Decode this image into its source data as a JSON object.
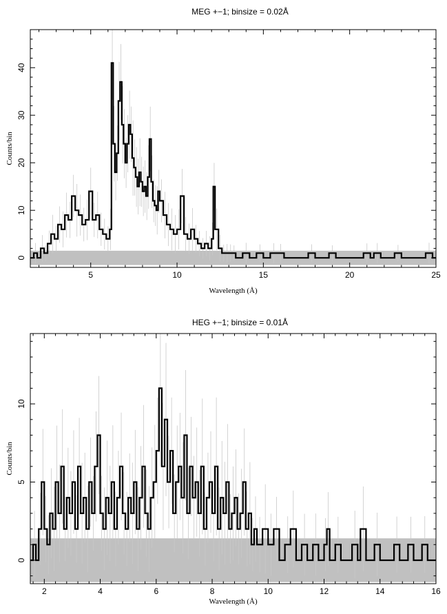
{
  "figure": {
    "background": "#ffffff",
    "data_color": "#000000",
    "error_color": "#c8c8c8",
    "noise_band_color": "#c0c0c0"
  },
  "chart_data": [
    {
      "type": "line",
      "style": "histogram-step",
      "title": "MEG +−1; binsize = 0.02Å",
      "xlabel": "Wavelength (Å)",
      "ylabel": "Counts/bin",
      "xlim": [
        1.5,
        25
      ],
      "ylim": [
        -2,
        48
      ],
      "x_ticks": [
        5,
        10,
        15,
        20,
        25
      ],
      "y_ticks": [
        0,
        10,
        20,
        30,
        40
      ],
      "grid": false,
      "legend": "none",
      "noise_band": [
        -1.5,
        1.5
      ],
      "series": [
        {
          "points": [
            [
              1.5,
              0
            ],
            [
              1.7,
              1
            ],
            [
              1.9,
              0
            ],
            [
              2.1,
              2
            ],
            [
              2.3,
              1
            ],
            [
              2.5,
              3
            ],
            [
              2.7,
              5
            ],
            [
              2.9,
              4
            ],
            [
              3.1,
              7
            ],
            [
              3.3,
              6
            ],
            [
              3.5,
              9
            ],
            [
              3.7,
              8
            ],
            [
              3.9,
              13
            ],
            [
              4.1,
              10
            ],
            [
              4.3,
              9
            ],
            [
              4.5,
              7
            ],
            [
              4.7,
              8
            ],
            [
              4.9,
              14
            ],
            [
              5.1,
              8
            ],
            [
              5.3,
              9
            ],
            [
              5.5,
              6
            ],
            [
              5.7,
              5
            ],
            [
              5.9,
              4
            ],
            [
              6.1,
              6
            ],
            [
              6.2,
              41
            ],
            [
              6.3,
              24
            ],
            [
              6.4,
              18
            ],
            [
              6.5,
              22
            ],
            [
              6.6,
              33
            ],
            [
              6.7,
              37
            ],
            [
              6.8,
              28
            ],
            [
              6.9,
              24
            ],
            [
              7.0,
              20
            ],
            [
              7.1,
              24
            ],
            [
              7.2,
              28
            ],
            [
              7.3,
              26
            ],
            [
              7.4,
              21
            ],
            [
              7.5,
              19
            ],
            [
              7.6,
              17
            ],
            [
              7.7,
              15
            ],
            [
              7.8,
              18
            ],
            [
              7.9,
              16
            ],
            [
              8.0,
              14
            ],
            [
              8.1,
              15
            ],
            [
              8.2,
              13
            ],
            [
              8.3,
              17
            ],
            [
              8.4,
              25
            ],
            [
              8.5,
              16
            ],
            [
              8.6,
              12
            ],
            [
              8.7,
              11
            ],
            [
              8.8,
              10
            ],
            [
              8.9,
              14
            ],
            [
              9.0,
              12
            ],
            [
              9.2,
              9
            ],
            [
              9.4,
              7
            ],
            [
              9.6,
              6
            ],
            [
              9.8,
              5
            ],
            [
              10.0,
              6
            ],
            [
              10.2,
              13
            ],
            [
              10.4,
              5
            ],
            [
              10.6,
              4
            ],
            [
              10.8,
              6
            ],
            [
              11.0,
              4
            ],
            [
              11.2,
              3
            ],
            [
              11.4,
              2
            ],
            [
              11.6,
              3
            ],
            [
              11.8,
              2
            ],
            [
              12.0,
              4
            ],
            [
              12.1,
              15
            ],
            [
              12.2,
              6
            ],
            [
              12.4,
              2
            ],
            [
              12.6,
              1
            ],
            [
              12.8,
              1
            ],
            [
              13.0,
              1
            ],
            [
              13.2,
              1
            ],
            [
              13.4,
              0
            ],
            [
              13.8,
              1
            ],
            [
              14.2,
              0
            ],
            [
              14.6,
              1
            ],
            [
              15.0,
              0
            ],
            [
              15.4,
              1
            ],
            [
              15.8,
              1
            ],
            [
              16.2,
              0
            ],
            [
              17.6,
              1
            ],
            [
              18.0,
              0
            ],
            [
              18.8,
              1
            ],
            [
              19.2,
              0
            ],
            [
              20.8,
              1
            ],
            [
              21.2,
              0
            ],
            [
              21.4,
              1
            ],
            [
              21.8,
              0
            ],
            [
              22.6,
              1
            ],
            [
              23.0,
              0
            ],
            [
              24.4,
              1
            ],
            [
              24.8,
              0
            ],
            [
              25.0,
              0
            ]
          ]
        }
      ]
    },
    {
      "type": "line",
      "style": "histogram-step",
      "title": "HEG +−1; binsize = 0.01Å",
      "xlabel": "Wavelength (Å)",
      "ylabel": "Counts/bin",
      "xlim": [
        1.5,
        16
      ],
      "ylim": [
        -1.5,
        14.5
      ],
      "x_ticks": [
        2,
        4,
        6,
        8,
        10,
        12,
        14,
        16
      ],
      "y_ticks": [
        0,
        5,
        10
      ],
      "grid": false,
      "legend": "none",
      "noise_band": [
        -1.4,
        1.4
      ],
      "series": [
        {
          "points": [
            [
              1.5,
              0
            ],
            [
              1.6,
              1
            ],
            [
              1.7,
              0
            ],
            [
              1.8,
              2
            ],
            [
              1.9,
              5
            ],
            [
              2.0,
              2
            ],
            [
              2.1,
              1
            ],
            [
              2.2,
              3
            ],
            [
              2.3,
              2
            ],
            [
              2.4,
              5
            ],
            [
              2.5,
              3
            ],
            [
              2.6,
              6
            ],
            [
              2.7,
              2
            ],
            [
              2.8,
              4
            ],
            [
              2.9,
              3
            ],
            [
              3.0,
              5
            ],
            [
              3.1,
              2
            ],
            [
              3.2,
              6
            ],
            [
              3.3,
              3
            ],
            [
              3.4,
              4
            ],
            [
              3.5,
              2
            ],
            [
              3.6,
              5
            ],
            [
              3.7,
              3
            ],
            [
              3.8,
              6
            ],
            [
              3.9,
              8
            ],
            [
              4.0,
              3
            ],
            [
              4.1,
              2
            ],
            [
              4.2,
              4
            ],
            [
              4.3,
              3
            ],
            [
              4.4,
              5
            ],
            [
              4.5,
              2
            ],
            [
              4.6,
              4
            ],
            [
              4.7,
              6
            ],
            [
              4.8,
              3
            ],
            [
              4.9,
              2
            ],
            [
              5.0,
              4
            ],
            [
              5.1,
              3
            ],
            [
              5.2,
              5
            ],
            [
              5.3,
              2
            ],
            [
              5.4,
              4
            ],
            [
              5.5,
              6
            ],
            [
              5.6,
              3
            ],
            [
              5.7,
              2
            ],
            [
              5.8,
              4
            ],
            [
              5.9,
              5
            ],
            [
              6.0,
              7
            ],
            [
              6.1,
              11
            ],
            [
              6.2,
              6
            ],
            [
              6.3,
              9
            ],
            [
              6.4,
              5
            ],
            [
              6.5,
              7
            ],
            [
              6.6,
              3
            ],
            [
              6.7,
              5
            ],
            [
              6.8,
              6
            ],
            [
              6.9,
              4
            ],
            [
              7.0,
              8
            ],
            [
              7.1,
              3
            ],
            [
              7.2,
              6
            ],
            [
              7.3,
              4
            ],
            [
              7.4,
              5
            ],
            [
              7.5,
              3
            ],
            [
              7.6,
              6
            ],
            [
              7.7,
              2
            ],
            [
              7.8,
              4
            ],
            [
              7.9,
              5
            ],
            [
              8.0,
              3
            ],
            [
              8.1,
              6
            ],
            [
              8.2,
              2
            ],
            [
              8.3,
              4
            ],
            [
              8.4,
              3
            ],
            [
              8.5,
              5
            ],
            [
              8.6,
              2
            ],
            [
              8.7,
              3
            ],
            [
              8.8,
              4
            ],
            [
              8.9,
              2
            ],
            [
              9.0,
              3
            ],
            [
              9.1,
              5
            ],
            [
              9.2,
              2
            ],
            [
              9.3,
              3
            ],
            [
              9.4,
              1
            ],
            [
              9.5,
              2
            ],
            [
              9.6,
              1
            ],
            [
              9.8,
              2
            ],
            [
              10.0,
              1
            ],
            [
              10.2,
              2
            ],
            [
              10.4,
              0
            ],
            [
              10.6,
              1
            ],
            [
              10.8,
              2
            ],
            [
              11.0,
              0
            ],
            [
              11.2,
              1
            ],
            [
              11.4,
              0
            ],
            [
              11.6,
              1
            ],
            [
              11.8,
              0
            ],
            [
              12.0,
              1
            ],
            [
              12.1,
              2
            ],
            [
              12.2,
              0
            ],
            [
              12.4,
              1
            ],
            [
              12.6,
              0
            ],
            [
              13.0,
              1
            ],
            [
              13.2,
              0
            ],
            [
              13.3,
              2
            ],
            [
              13.5,
              0
            ],
            [
              13.8,
              1
            ],
            [
              14.0,
              0
            ],
            [
              14.5,
              1
            ],
            [
              14.7,
              0
            ],
            [
              15.0,
              1
            ],
            [
              15.2,
              0
            ],
            [
              15.5,
              1
            ],
            [
              15.7,
              0
            ],
            [
              16.0,
              0
            ]
          ]
        }
      ]
    }
  ]
}
